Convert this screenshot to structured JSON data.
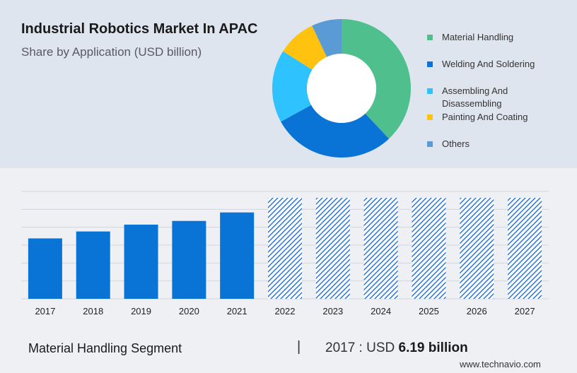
{
  "header": {
    "title": "Industrial Robotics Market In APAC",
    "subtitle": "Share by Application (USD billion)"
  },
  "chart_data": [
    {
      "type": "pie",
      "variant": "donut",
      "slices": [
        {
          "label": "Material Handling",
          "value": 38,
          "color": "#4fc08d"
        },
        {
          "label": "Welding And Soldering",
          "value": 29,
          "color": "#0a74d6"
        },
        {
          "label": "Assembling And Disassembling",
          "value": 17,
          "color": "#2ec3ff"
        },
        {
          "label": "Painting And Coating",
          "value": 9,
          "color": "#ffc20e"
        },
        {
          "label": "Others",
          "value": 7,
          "color": "#5b9bd5"
        }
      ]
    },
    {
      "type": "bar",
      "categories": [
        "2017",
        "2018",
        "2019",
        "2020",
        "2021",
        "2022",
        "2023",
        "2024",
        "2025",
        "2026",
        "2027"
      ],
      "values": [
        6.19,
        6.9,
        7.6,
        7.98,
        8.85,
        null,
        null,
        null,
        null,
        null,
        null
      ],
      "forecast": [
        false,
        false,
        false,
        false,
        false,
        true,
        true,
        true,
        true,
        true,
        true
      ],
      "forecast_value": 10.35,
      "ylim": [
        0,
        11
      ],
      "grid": true,
      "bar_color": "#0a74d6",
      "forecast_color": "#1e6fd9"
    }
  ],
  "footer": {
    "segment_label": "Material Handling Segment",
    "divider": "|",
    "year_prefix": "2017 : USD",
    "value_text": "6.19 billion",
    "brand": "www.technavio.com"
  }
}
